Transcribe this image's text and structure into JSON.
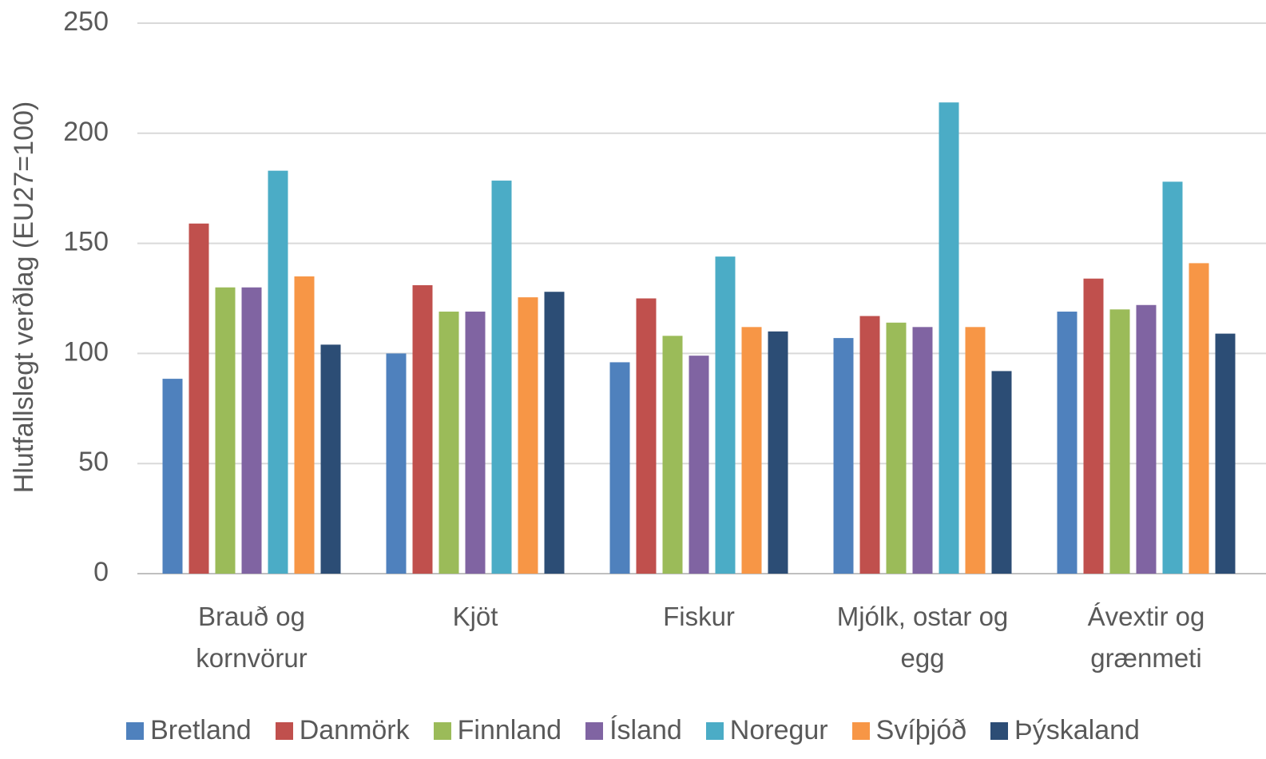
{
  "chart_data": {
    "type": "bar",
    "y_label": "Hlutfallslegt verðlag (EU27=100)",
    "categories": [
      "Brauð og kornvörur",
      "Kjöt",
      "Fiskur",
      "Mjólk, ostar og egg",
      "Ávextir og grænmeti"
    ],
    "series": [
      {
        "name": "Bretland",
        "color": "#4f81bd",
        "values": [
          88.5,
          100,
          96,
          107,
          119
        ]
      },
      {
        "name": "Danmörk",
        "color": "#c0504d",
        "values": [
          159,
          131,
          125,
          117,
          134
        ]
      },
      {
        "name": "Finnland",
        "color": "#9bbb59",
        "values": [
          130,
          119,
          108,
          114,
          120
        ]
      },
      {
        "name": "Ísland",
        "color": "#8064a2",
        "values": [
          130,
          119,
          99,
          112,
          122
        ]
      },
      {
        "name": "Noregur",
        "color": "#4bacc6",
        "values": [
          183,
          178.5,
          144,
          214,
          178
        ]
      },
      {
        "name": "Svíþjóð",
        "color": "#f79646",
        "values": [
          135,
          125.5,
          112,
          112,
          141
        ]
      },
      {
        "name": "Þýskaland",
        "color": "#2c4d75",
        "values": [
          104,
          128,
          110,
          92,
          109
        ]
      }
    ],
    "ylim": [
      0,
      250
    ],
    "yticks": [
      0,
      50,
      100,
      150,
      200,
      250
    ],
    "grid": true
  }
}
